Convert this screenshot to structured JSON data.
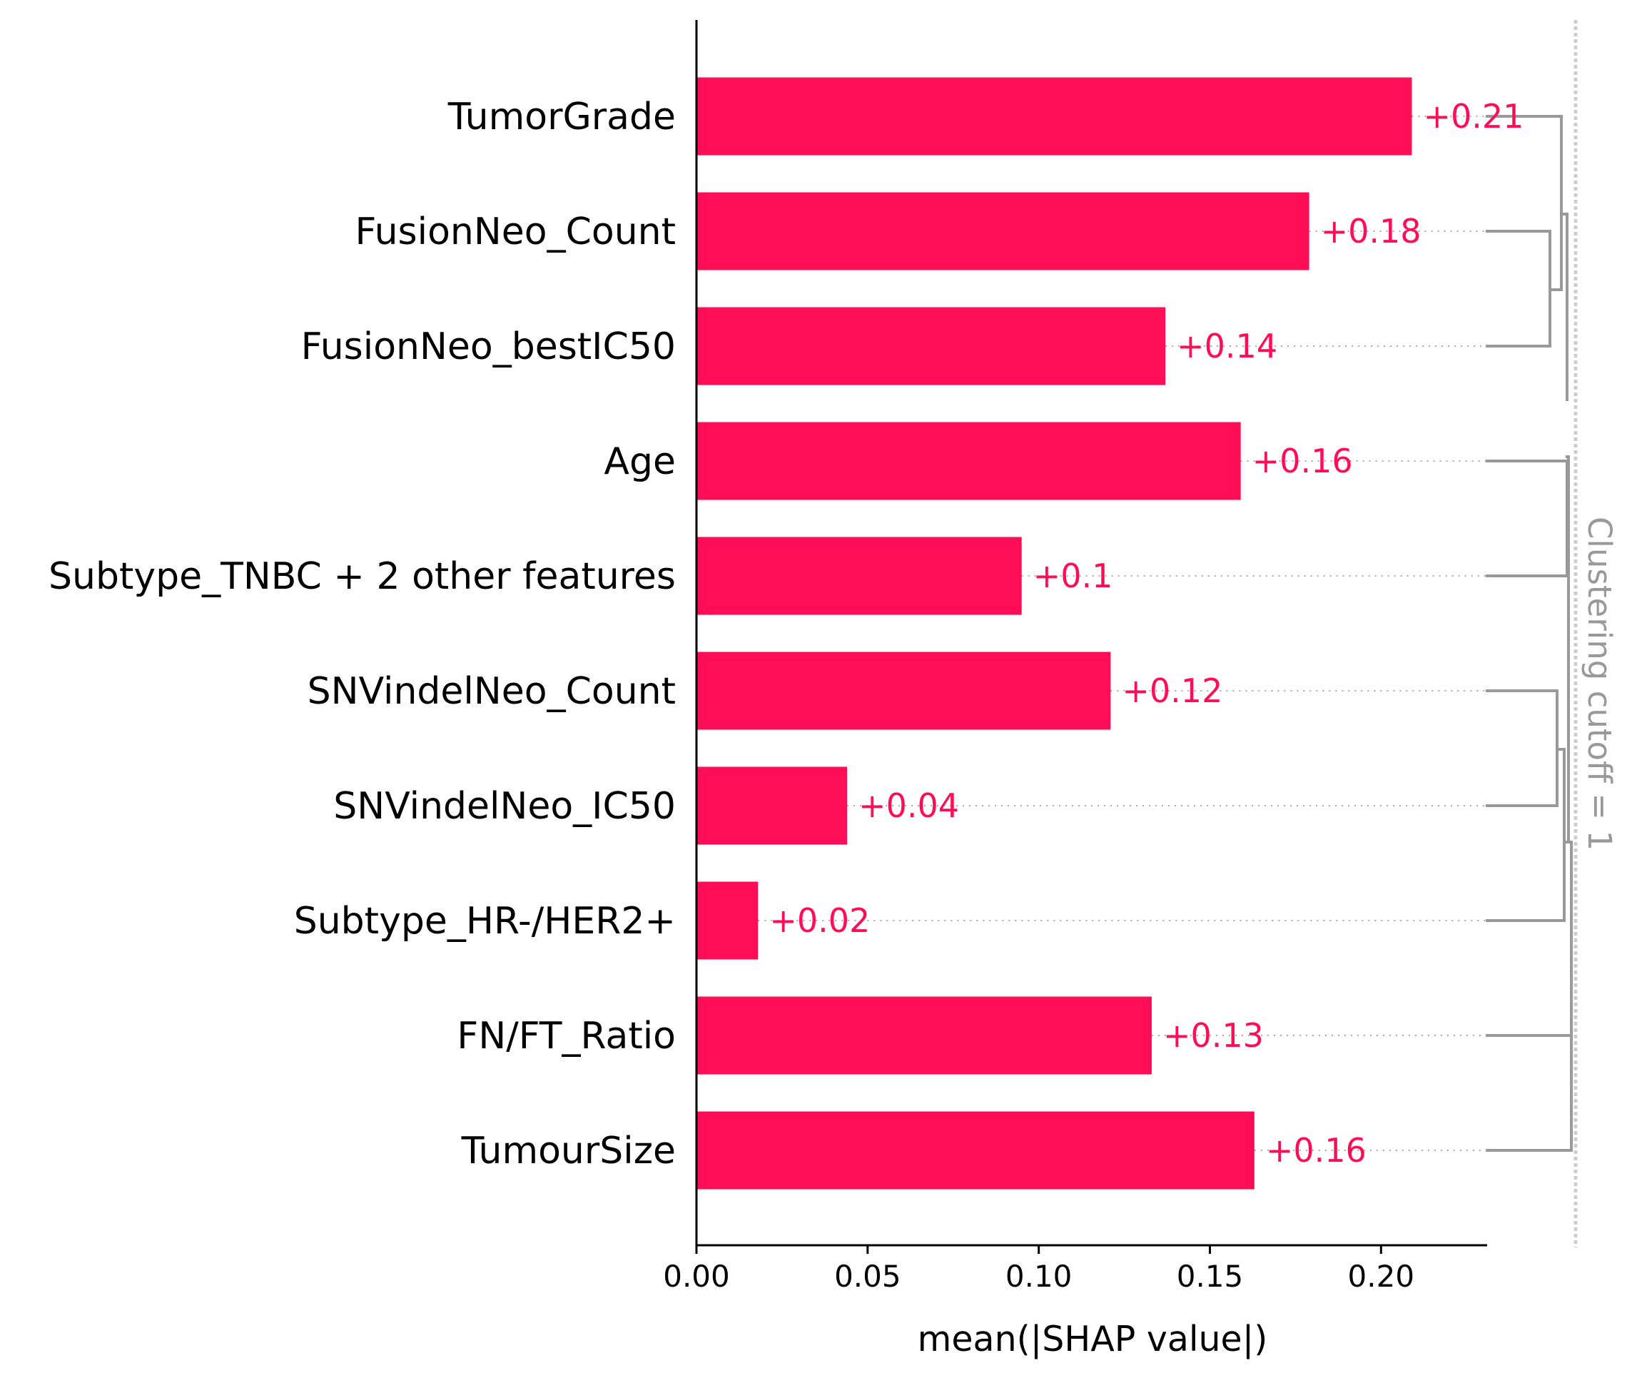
{
  "chart_data": {
    "type": "bar",
    "orientation": "horizontal",
    "categories": [
      "TumorGrade",
      "FusionNeo_Count",
      "FusionNeo_bestIC50",
      "Age",
      "Subtype_TNBC + 2 other features",
      "SNVindelNeo_Count",
      "SNVindelNeo_IC50",
      "Subtype_HR-/HER2+",
      "FN/FT_Ratio",
      "TumourSize"
    ],
    "values": [
      0.209,
      0.179,
      0.137,
      0.159,
      0.095,
      0.121,
      0.044,
      0.018,
      0.133,
      0.163
    ],
    "data_labels": [
      "+0.21",
      "+0.18",
      "+0.14",
      "+0.16",
      "+0.1",
      "+0.12",
      "+0.04",
      "+0.02",
      "+0.13",
      "+0.16"
    ],
    "xlabel": "mean(|SHAP value|)",
    "ylabel": "",
    "xlim": [
      0,
      0.231
    ],
    "xticks": [
      0.0,
      0.05,
      0.1,
      0.15,
      0.2
    ],
    "xtick_labels": [
      "0.00",
      "0.05",
      "0.10",
      "0.15",
      "0.20"
    ],
    "clustering_label": "Clustering cutoff = 1",
    "grid": false,
    "dendrogram_pairs": [
      [
        0,
        1
      ],
      [
        1,
        2
      ],
      [
        3,
        4
      ],
      [
        5,
        6
      ],
      [
        7,
        8
      ],
      [
        8,
        9
      ]
    ],
    "colors": {
      "bar": "#ff0d57",
      "label": "#ff0d57",
      "dendrogram": "#999999",
      "cutoff_line": "#cccccc",
      "clustering_label": "#999999",
      "axis": "#000000"
    }
  }
}
